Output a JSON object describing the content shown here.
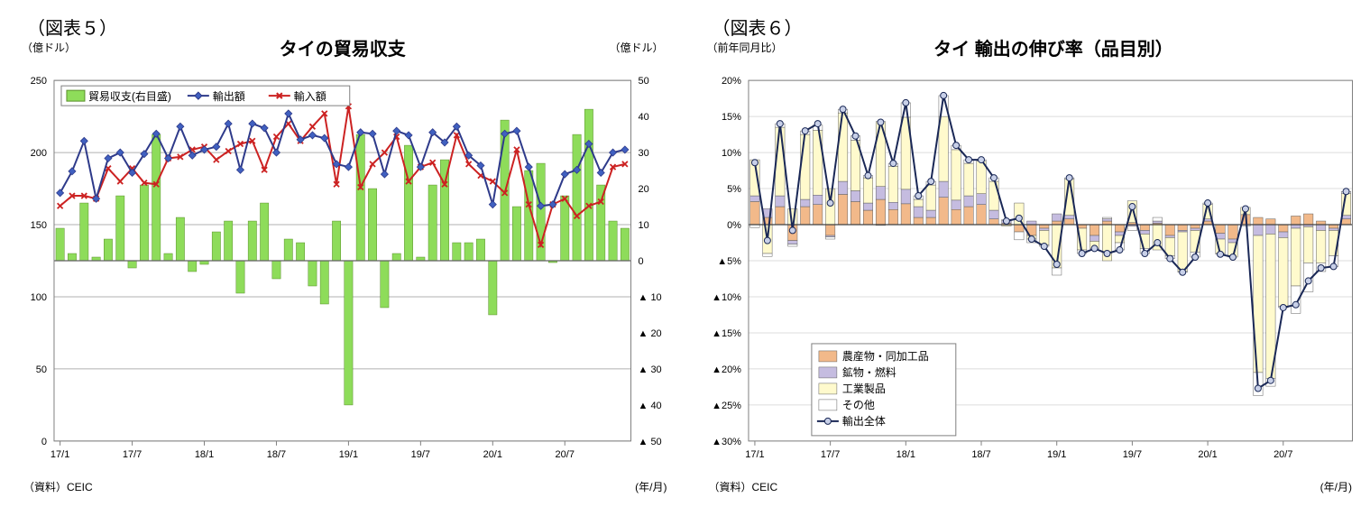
{
  "chart5": {
    "fig_label": "（図表５）",
    "title": "タイの貿易収支",
    "unit_left": "（億ドル）",
    "unit_right": "（億ドル）",
    "source_label": "（資料）CEIC",
    "x_axis_label": "(年/月)",
    "font_family": "MS Gothic, Meiryo, sans-serif",
    "title_fontsize": 20,
    "label_fontsize": 11,
    "background_color": "#ffffff",
    "grid_color": "#b0b0b0",
    "plot_border_color": "#808080",
    "y_left": {
      "min": 0,
      "max": 250,
      "step": 50
    },
    "y_right": {
      "min": -50,
      "max": 50,
      "step": 10,
      "neg_prefix": "▲ "
    },
    "x_ticks": [
      "17/1",
      "17/7",
      "18/1",
      "18/7",
      "19/1",
      "19/7",
      "20/1",
      "20/7"
    ],
    "x_tick_positions": [
      0,
      6,
      12,
      18,
      24,
      30,
      36,
      42
    ],
    "n_points": 48,
    "legend": {
      "items": [
        {
          "key": "balance",
          "label": "貿易収支(右目盛)",
          "type": "bar",
          "color": "#8edc5a"
        },
        {
          "key": "exports",
          "label": "輸出額",
          "type": "diamond-line",
          "color": "#2e3a8a",
          "marker": "#4060c0"
        },
        {
          "key": "imports",
          "label": "輸入額",
          "type": "x-line",
          "color": "#cc2222"
        }
      ]
    },
    "series": {
      "balance_color": "#8edc5a",
      "balance_stroke": "#5a8f2b",
      "exports_color": "#2e3a8a",
      "exports_marker": "#4060c0",
      "imports_color": "#cc2222",
      "balance": [
        9,
        2,
        16,
        1,
        6,
        18,
        -2,
        21,
        35,
        2,
        12,
        -3,
        -1,
        8,
        11,
        -9,
        11,
        16,
        -5,
        6,
        5,
        -7,
        -12,
        11,
        -40,
        35,
        20,
        -13,
        2,
        32,
        1,
        21,
        28,
        5,
        5,
        6,
        -15,
        39,
        15,
        25,
        27,
        -0.5,
        18,
        35,
        42,
        21,
        11,
        9
      ],
      "exports": [
        172,
        187,
        208,
        168,
        196,
        200,
        186,
        199,
        213,
        196,
        218,
        198,
        202,
        204,
        220,
        188,
        220,
        217,
        200,
        227,
        209,
        212,
        210,
        192,
        190,
        214,
        213,
        185,
        215,
        212,
        190,
        214,
        207,
        218,
        198,
        191,
        164,
        213,
        215,
        190,
        163,
        164,
        185,
        188,
        206,
        186,
        200,
        202
      ],
      "imports": [
        163,
        170,
        170,
        168,
        189,
        180,
        189,
        179,
        178,
        196,
        197,
        202,
        204,
        195,
        201,
        206,
        208,
        188,
        211,
        220,
        208,
        218,
        227,
        178,
        232,
        176,
        192,
        200,
        211,
        180,
        190,
        193,
        178,
        212,
        192,
        184,
        180,
        172,
        202,
        164,
        136,
        164,
        168,
        156,
        163,
        166,
        190,
        192
      ]
    }
  },
  "chart6": {
    "fig_label": "（図表６）",
    "title": "タイ 輸出の伸び率（品目別）",
    "unit_left": "（前年同月比）",
    "source_label": "（資料）CEIC",
    "x_axis_label": "(年/月)",
    "font_family": "MS Gothic, Meiryo, sans-serif",
    "title_fontsize": 20,
    "label_fontsize": 11,
    "background_color": "#ffffff",
    "grid_color": "#dcdcdc",
    "plot_border_color": "#808080",
    "y": {
      "min": -30,
      "max": 20,
      "step": 5,
      "neg_prefix": "▲",
      "suffix": "%"
    },
    "x_ticks": [
      "17/1",
      "17/7",
      "18/1",
      "18/7",
      "19/1",
      "19/7",
      "20/1",
      "20/7"
    ],
    "x_tick_positions": [
      0,
      6,
      12,
      18,
      24,
      30,
      36,
      42
    ],
    "n_points": 48,
    "legend": {
      "items": [
        {
          "key": "agri",
          "label": "農産物・同加工品",
          "type": "bar",
          "color": "#f2b98a"
        },
        {
          "key": "mineral",
          "label": "鉱物・燃料",
          "type": "bar",
          "color": "#c5bce0"
        },
        {
          "key": "industrial",
          "label": "工業製品",
          "type": "bar",
          "color": "#fffacd"
        },
        {
          "key": "other",
          "label": "その他",
          "type": "bar",
          "color": "#ffffff"
        },
        {
          "key": "total",
          "label": "輸出全体",
          "type": "circle-line",
          "color": "#1a2856",
          "marker": "#c8d0e8"
        }
      ]
    },
    "series": {
      "colors": {
        "agri": "#f2b98a",
        "mineral": "#c5bce0",
        "industrial": "#fffacd",
        "other": "#ffffff",
        "total_line": "#1a2856",
        "total_marker": "#c8d0e8"
      },
      "agri": [
        3.2,
        1.0,
        2.5,
        -2.2,
        2.5,
        2.8,
        -1.5,
        4.2,
        3.2,
        2.0,
        3.5,
        2.1,
        2.9,
        1.0,
        1.0,
        3.8,
        2.1,
        2.5,
        2.8,
        0.8,
        0.2,
        -1.0,
        -1.5,
        -0.5,
        0.5,
        0.8,
        -0.5,
        -1.5,
        0.5,
        -1.0,
        0.3,
        -0.8,
        0.2,
        -1.5,
        -0.8,
        -0.5,
        0.5,
        -1.2,
        -2.0,
        1.4,
        1.0,
        0.8,
        -1.0,
        1.2,
        1.5,
        0.5,
        -0.5,
        0.8
      ],
      "mineral": [
        0.8,
        1.2,
        1.5,
        -0.5,
        1.0,
        1.3,
        -0.2,
        1.8,
        1.5,
        1.0,
        1.8,
        1.0,
        2.0,
        1.5,
        1.0,
        2.2,
        1.3,
        1.5,
        1.5,
        1.2,
        0.4,
        0.0,
        0.5,
        -0.3,
        1.0,
        0.5,
        0.0,
        -0.8,
        0.3,
        -0.5,
        -0.2,
        -0.5,
        0.3,
        -0.3,
        -0.2,
        -0.3,
        0.3,
        -0.8,
        -0.5,
        0.0,
        -1.5,
        -1.3,
        -0.8,
        -0.5,
        -0.3,
        -0.8,
        -0.3,
        0.5
      ],
      "industrial": [
        5.0,
        -4.0,
        9.5,
        2.2,
        9.0,
        9.0,
        5.0,
        9.5,
        7.0,
        3.5,
        9.0,
        5.0,
        10.0,
        1.0,
        3.5,
        9.0,
        7.0,
        4.5,
        4.5,
        4.0,
        -0.2,
        3.0,
        -0.5,
        -2.0,
        -6.0,
        5.0,
        -3.0,
        -1.0,
        -5.0,
        -1.0,
        3.0,
        -2.0,
        -3.5,
        -2.5,
        -5.5,
        -3.0,
        2.0,
        -2.0,
        -2.0,
        1.0,
        -19.0,
        -20.0,
        -9.5,
        -8.0,
        -5.0,
        -4.5,
        -3.5,
        3.0
      ],
      "other": [
        -0.4,
        -0.4,
        0.5,
        -0.3,
        0.5,
        0.7,
        -0.3,
        0.5,
        0.6,
        0.3,
        -0.1,
        0.4,
        2.0,
        0.5,
        0.5,
        2.9,
        0.6,
        0.5,
        0.2,
        0.5,
        0.1,
        -1.1,
        -0.5,
        -0.2,
        -1.0,
        0.2,
        -0.5,
        0.0,
        0.2,
        -1.0,
        -0.6,
        -0.7,
        0.5,
        -0.4,
        -0.1,
        -0.7,
        0.2,
        -0.1,
        0.0,
        -0.2,
        -3.2,
        -1.1,
        -0.2,
        -3.8,
        -4.0,
        -1.2,
        -1.5,
        0.3
      ],
      "total": [
        8.6,
        -2.2,
        14.0,
        -0.8,
        13.0,
        14.0,
        3.0,
        16.0,
        12.3,
        6.8,
        14.2,
        8.5,
        16.9,
        4.0,
        6.0,
        17.9,
        11.0,
        9.0,
        9.0,
        6.5,
        0.5,
        0.9,
        -2.0,
        -3.0,
        -5.5,
        6.5,
        -4.0,
        -3.3,
        -4.0,
        -3.5,
        2.5,
        -4.0,
        -2.5,
        -4.7,
        -6.6,
        -4.5,
        3.0,
        -4.1,
        -4.5,
        2.2,
        -22.7,
        -21.6,
        -11.5,
        -11.1,
        -7.8,
        -6.0,
        -5.8,
        4.6
      ]
    }
  }
}
